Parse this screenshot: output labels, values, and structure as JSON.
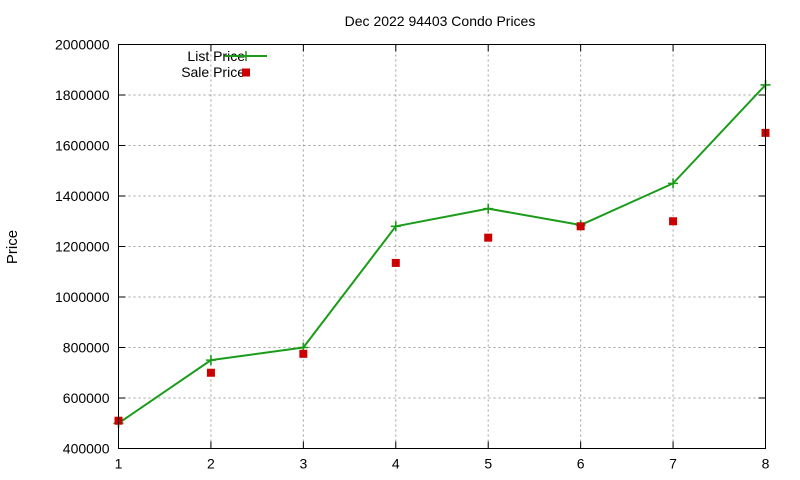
{
  "chart_data": {
    "type": "line",
    "title": "Dec 2022 94403 Condo Prices",
    "xlabel": "",
    "ylabel": "Price",
    "x": [
      1,
      2,
      3,
      4,
      5,
      6,
      7,
      8
    ],
    "xlim": [
      1,
      8
    ],
    "ylim": [
      400000,
      2000000
    ],
    "x_ticks": [
      1,
      2,
      3,
      4,
      5,
      6,
      7,
      8
    ],
    "y_ticks": [
      400000,
      600000,
      800000,
      1000000,
      1200000,
      1400000,
      1600000,
      1800000,
      2000000
    ],
    "grid": true,
    "legend_position": "top-left",
    "series": [
      {
        "name": "List Price",
        "style": "line-with-plus-markers",
        "color": "#1a9c1a",
        "values": [
          500000,
          750000,
          800000,
          1280000,
          1350000,
          1285000,
          1450000,
          1840000
        ]
      },
      {
        "name": "Sale Price",
        "style": "square-markers",
        "color": "#cc0000",
        "values": [
          510000,
          700000,
          775000,
          1135000,
          1235000,
          1280000,
          1300000,
          1650000
        ]
      }
    ]
  }
}
